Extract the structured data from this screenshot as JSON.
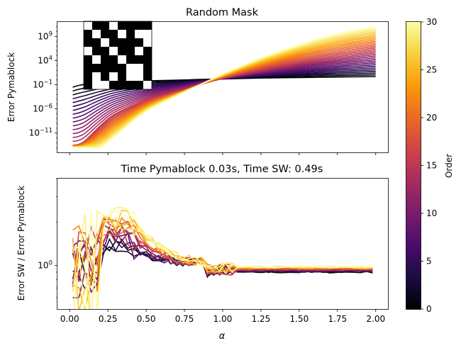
{
  "chart_data": [
    {
      "type": "line",
      "title": "Random Mask",
      "xlabel": "",
      "ylabel": "Error Pymablock",
      "yscale": "log",
      "xlim": [
        -0.08,
        2.08
      ],
      "ylim": [
        1e-15,
        1000000000000.0
      ],
      "yticks": [
        {
          "v": 1000000000.0,
          "b": "10",
          "e": "9"
        },
        {
          "v": 10000.0,
          "b": "10",
          "e": "4"
        },
        {
          "v": 0.1,
          "b": "10",
          "e": "−1"
        },
        {
          "v": 1e-06,
          "b": "10",
          "e": "−6"
        },
        {
          "v": 1e-11,
          "b": "10",
          "e": "−11"
        }
      ],
      "xticks": [
        0,
        0.25,
        0.5,
        0.75,
        1.0,
        1.25,
        1.5,
        1.75,
        2.0
      ],
      "xtick_labels_visible": false,
      "series_count": 31,
      "order_range": [
        0,
        30
      ],
      "alpha_samples": [
        0.02,
        0.05,
        0.1,
        0.2,
        0.3,
        0.5,
        0.75,
        0.85,
        1.0,
        1.25,
        1.5,
        1.75,
        2.0
      ],
      "series_description": "one line per perturbation order 0-30, coloured by the Order colorbar",
      "sample_series": [
        {
          "order": 0,
          "log10_error": [
            -1.5,
            -1.2,
            -0.9,
            -0.6,
            -0.4,
            -0.2,
            0.0,
            0.1,
            0.2,
            0.4,
            0.5,
            0.6,
            0.7
          ]
        },
        {
          "order": 15,
          "log10_error": [
            -13.5,
            -13.4,
            -12.6,
            -9.5,
            -7.0,
            -4.2,
            -2.0,
            -1.0,
            0.3,
            2.0,
            3.5,
            4.8,
            6.0
          ]
        },
        {
          "order": 30,
          "log10_error": [
            -14.0,
            -14.0,
            -14.0,
            -13.9,
            -11.5,
            -6.5,
            -2.5,
            -1.0,
            1.2,
            4.5,
            7.2,
            9.5,
            11.0
          ]
        }
      ],
      "inset_mask_pattern": [
        [
          0,
          1,
          1,
          0,
          1,
          1,
          1,
          1
        ],
        [
          1,
          0,
          1,
          1,
          0,
          1,
          0,
          0
        ],
        [
          1,
          1,
          0,
          1,
          1,
          1,
          1,
          0
        ],
        [
          0,
          1,
          1,
          0,
          1,
          1,
          0,
          1
        ],
        [
          1,
          0,
          1,
          1,
          0,
          1,
          1,
          1
        ],
        [
          1,
          1,
          1,
          1,
          1,
          0,
          0,
          1
        ],
        [
          1,
          0,
          1,
          0,
          1,
          0,
          0,
          1
        ],
        [
          1,
          0,
          0,
          1,
          1,
          1,
          1,
          0
        ]
      ]
    },
    {
      "type": "line",
      "title": "Time Pymablock 0.03s, Time SW: 0.49s",
      "xlabel": "α",
      "ylabel": "Error SW / Error Pymablock",
      "yscale": "log",
      "xlim": [
        -0.08,
        2.08
      ],
      "ylim": [
        0.5,
        4.0
      ],
      "yticks": [
        {
          "v": 1.0,
          "b": "10",
          "e": "0"
        }
      ],
      "xticks": [
        0.0,
        0.25,
        0.5,
        0.75,
        1.0,
        1.25,
        1.5,
        1.75,
        2.0
      ],
      "xtick_labels": [
        "0.00",
        "0.25",
        "0.50",
        "0.75",
        "1.00",
        "1.25",
        "1.50",
        "1.75",
        "2.00"
      ],
      "series_count": 31,
      "order_range": [
        0,
        30
      ],
      "series_description": "ratio of SW error to Pymablock error per order, noisy below α≈1 then flat near 1"
    }
  ],
  "colorbar": {
    "label": "Order",
    "min": 0,
    "max": 30,
    "ticks": [
      "0",
      "5",
      "10",
      "15",
      "20",
      "25",
      "30"
    ],
    "colormap": "inferno"
  },
  "colors": {
    "inferno_stops": [
      "#000004",
      "#1b0c41",
      "#4a0c6b",
      "#781c6d",
      "#a52c60",
      "#cf4446",
      "#ed6925",
      "#fb9b06",
      "#f7d13d",
      "#fcffa4"
    ]
  }
}
